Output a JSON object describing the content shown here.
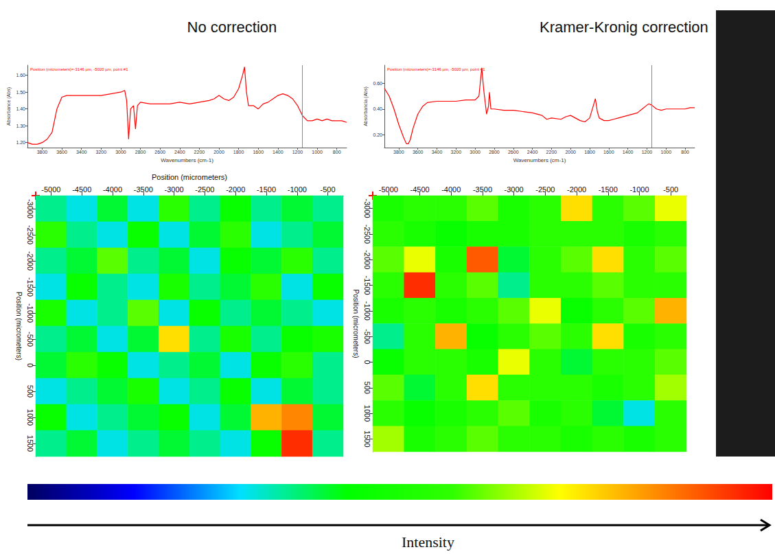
{
  "chart_data": [
    {
      "type": "line",
      "title": "No correction",
      "annotation": "Position (micrometers)=-3146 µm, -5020 µm, point #1",
      "xlabel": "Wavenumbers (cm-1)",
      "ylabel": "Absorbance (Abs)",
      "color": "#ff0000",
      "cursor": 1150,
      "x": [
        3950,
        3900,
        3850,
        3800,
        3750,
        3700,
        3650,
        3600,
        3550,
        3500,
        3400,
        3300,
        3200,
        3100,
        3000,
        2960,
        2940,
        2920,
        2900,
        2870,
        2850,
        2830,
        2800,
        2700,
        2600,
        2500,
        2400,
        2300,
        2200,
        2100,
        2050,
        2000,
        1950,
        1900,
        1850,
        1800,
        1760,
        1740,
        1720,
        1700,
        1650,
        1600,
        1550,
        1500,
        1450,
        1400,
        1350,
        1300,
        1250,
        1200,
        1150,
        1100,
        1050,
        1000,
        950,
        900,
        850,
        800,
        750,
        700
      ],
      "values": [
        1.2,
        1.19,
        1.19,
        1.2,
        1.22,
        1.26,
        1.4,
        1.47,
        1.48,
        1.48,
        1.48,
        1.48,
        1.48,
        1.49,
        1.5,
        1.51,
        1.45,
        1.22,
        1.4,
        1.42,
        1.28,
        1.42,
        1.44,
        1.43,
        1.43,
        1.43,
        1.44,
        1.43,
        1.44,
        1.45,
        1.46,
        1.48,
        1.46,
        1.45,
        1.47,
        1.52,
        1.6,
        1.65,
        1.5,
        1.42,
        1.42,
        1.4,
        1.43,
        1.44,
        1.46,
        1.48,
        1.49,
        1.48,
        1.46,
        1.42,
        1.36,
        1.33,
        1.33,
        1.34,
        1.33,
        1.34,
        1.33,
        1.33,
        1.33,
        1.32
      ],
      "xlim": [
        3950,
        700
      ],
      "xticks": [
        3800,
        3600,
        3400,
        3200,
        3000,
        2800,
        2600,
        2400,
        2200,
        2000,
        1800,
        1600,
        1400,
        1200,
        1000,
        800
      ],
      "ylim": [
        1.17,
        1.66
      ],
      "yticks": [
        {
          "value": 1.2,
          "label": "1.20"
        },
        {
          "value": 1.3,
          "label": "1.30"
        },
        {
          "value": 1.4,
          "label": "1.40"
        },
        {
          "value": 1.5,
          "label": "1.50"
        },
        {
          "value": 1.6,
          "label": "1.60"
        }
      ]
    },
    {
      "type": "line",
      "title": "Kramer-Kronig correction",
      "annotation": "Position (micrometers)=-3146 µm, -5020 µm, point #1",
      "xlabel": "Wavenumbers (cm-1)",
      "ylabel": "Absorbancia (Abs)",
      "color": "#ff0000",
      "cursor": 1150,
      "x": [
        3950,
        3900,
        3850,
        3800,
        3750,
        3720,
        3700,
        3680,
        3650,
        3600,
        3550,
        3500,
        3400,
        3300,
        3200,
        3100,
        3000,
        2960,
        2930,
        2910,
        2880,
        2860,
        2850,
        2835,
        2800,
        2700,
        2600,
        2500,
        2400,
        2300,
        2250,
        2200,
        2100,
        2050,
        2000,
        1950,
        1900,
        1850,
        1800,
        1760,
        1740,
        1720,
        1700,
        1650,
        1600,
        1550,
        1500,
        1400,
        1300,
        1250,
        1200,
        1180,
        1150,
        1100,
        1050,
        1000,
        950,
        900,
        850,
        800,
        750,
        700
      ],
      "values": [
        0.56,
        0.5,
        0.4,
        0.28,
        0.18,
        0.13,
        0.13,
        0.16,
        0.25,
        0.36,
        0.42,
        0.45,
        0.46,
        0.46,
        0.46,
        0.47,
        0.47,
        0.5,
        0.72,
        0.55,
        0.36,
        0.42,
        0.53,
        0.4,
        0.4,
        0.39,
        0.39,
        0.38,
        0.37,
        0.35,
        0.32,
        0.33,
        0.32,
        0.34,
        0.35,
        0.33,
        0.31,
        0.3,
        0.33,
        0.43,
        0.48,
        0.38,
        0.33,
        0.31,
        0.31,
        0.32,
        0.33,
        0.35,
        0.37,
        0.4,
        0.43,
        0.44,
        0.43,
        0.4,
        0.39,
        0.4,
        0.4,
        0.4,
        0.4,
        0.4,
        0.41,
        0.41
      ],
      "xlim": [
        3950,
        700
      ],
      "xticks": [
        3800,
        3600,
        3400,
        3200,
        3000,
        2800,
        2600,
        2400,
        2200,
        2000,
        1800,
        1600,
        1400,
        1200,
        1000,
        800
      ],
      "ylim": [
        0.1,
        0.74
      ],
      "yticks": [
        {
          "value": 0.2,
          "label": "0.20"
        },
        {
          "value": 0.4,
          "label": "0.40"
        },
        {
          "value": 0.6,
          "label": "0.60"
        }
      ]
    },
    {
      "type": "heatmap",
      "xlabel": "Position (micrometers)",
      "ylabel": "Position (micrometers)",
      "x": [
        -5000,
        -4500,
        -4000,
        -3500,
        -3000,
        -2500,
        -2000,
        -1500,
        -1000,
        -500
      ],
      "y": [
        -3000,
        -2500,
        -2000,
        -1500,
        -1000,
        -500,
        0,
        500,
        1000,
        1500
      ],
      "cells": [
        [
          0.35,
          0.3,
          0.4,
          0.3,
          0.55,
          0.35,
          0.45,
          0.35,
          0.4,
          0.35
        ],
        [
          0.55,
          0.35,
          0.3,
          0.45,
          0.3,
          0.4,
          0.55,
          0.3,
          0.35,
          0.4
        ],
        [
          0.35,
          0.4,
          0.6,
          0.35,
          0.4,
          0.3,
          0.45,
          0.4,
          0.55,
          0.35
        ],
        [
          0.3,
          0.45,
          0.35,
          0.3,
          0.5,
          0.35,
          0.4,
          0.55,
          0.3,
          0.45
        ],
        [
          0.5,
          0.3,
          0.35,
          0.6,
          0.3,
          0.45,
          0.35,
          0.4,
          0.35,
          0.3
        ],
        [
          0.35,
          0.4,
          0.3,
          0.4,
          0.75,
          0.35,
          0.5,
          0.35,
          0.45,
          0.5
        ],
        [
          0.4,
          0.55,
          0.45,
          0.3,
          0.35,
          0.4,
          0.3,
          0.45,
          0.55,
          0.35
        ],
        [
          0.3,
          0.35,
          0.4,
          0.5,
          0.3,
          0.35,
          0.45,
          0.3,
          0.4,
          0.35
        ],
        [
          0.45,
          0.3,
          0.35,
          0.4,
          0.45,
          0.3,
          0.4,
          0.8,
          0.85,
          0.4
        ],
        [
          0.35,
          0.4,
          0.3,
          0.35,
          0.4,
          0.35,
          0.3,
          0.45,
          0.95,
          0.35
        ]
      ]
    },
    {
      "type": "heatmap",
      "ylabel": "Position (micrometers)",
      "x": [
        -5000,
        -4500,
        -4000,
        -3500,
        -3000,
        -2500,
        -2000,
        -1500,
        -1000,
        -500
      ],
      "y": [
        -3000,
        -2500,
        -2000,
        -1500,
        -1000,
        -500,
        0,
        500,
        1000,
        1500
      ],
      "cells": [
        [
          0.5,
          0.55,
          0.55,
          0.6,
          0.5,
          0.55,
          0.75,
          0.55,
          0.6,
          0.7
        ],
        [
          0.55,
          0.5,
          0.45,
          0.5,
          0.5,
          0.55,
          0.55,
          0.55,
          0.5,
          0.55
        ],
        [
          0.6,
          0.7,
          0.5,
          0.9,
          0.4,
          0.55,
          0.6,
          0.75,
          0.55,
          0.6
        ],
        [
          0.55,
          0.95,
          0.55,
          0.6,
          0.35,
          0.55,
          0.55,
          0.6,
          0.55,
          0.55
        ],
        [
          0.5,
          0.55,
          0.5,
          0.55,
          0.6,
          0.7,
          0.45,
          0.55,
          0.6,
          0.8
        ],
        [
          0.35,
          0.55,
          0.8,
          0.45,
          0.55,
          0.6,
          0.55,
          0.75,
          0.5,
          0.55
        ],
        [
          0.45,
          0.55,
          0.55,
          0.5,
          0.7,
          0.55,
          0.4,
          0.55,
          0.55,
          0.6
        ],
        [
          0.6,
          0.4,
          0.55,
          0.75,
          0.55,
          0.55,
          0.55,
          0.5,
          0.55,
          0.65
        ],
        [
          0.55,
          0.45,
          0.5,
          0.55,
          0.6,
          0.5,
          0.55,
          0.4,
          0.3,
          0.55
        ],
        [
          0.65,
          0.5,
          0.55,
          0.6,
          0.55,
          0.55,
          0.5,
          0.55,
          0.5,
          0.55
        ]
      ]
    }
  ],
  "colorbar": {
    "label": "Intensity",
    "range": [
      0,
      1
    ],
    "colors": [
      "#000060",
      "#0000ff",
      "#00e0ff",
      "#00ff00",
      "#30ff00",
      "#ffff00",
      "#ff8000",
      "#ff0000"
    ]
  }
}
